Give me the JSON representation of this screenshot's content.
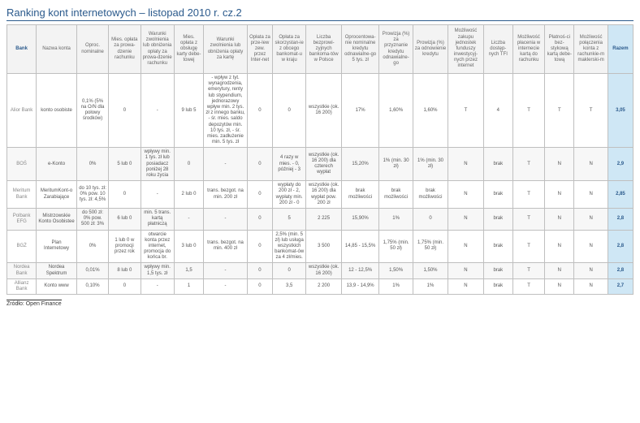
{
  "title": "Ranking kont internetowych – listopad 2010 r. cz.2",
  "source": "Źródło: Open Finance",
  "columns": [
    "Bank",
    "Nazwa konta",
    "Oproc. nominalne",
    "Mies. opłata za prowa-dzenie rachunku",
    "Warunki zwolnienia lub obniżenia opłaty za prowa-dzenie rachunku",
    "Mies. opłata z obsługę karty debe-towej",
    "Warunki zwolnienia lub obniżenia opłaty za kartę",
    "Opłata za prze-lew zew. przez Inter-net",
    "Opłata za skorzystan-ie z obcego bankomat-u w kraju",
    "Liczba bezprowi-zyjnych bankoma-tów w Polsce",
    "Oprocentowa-nie nominalne kredytu odnawialne-go 5 tys. zł",
    "Prowizja (%) za przyznanie kredytu odnawialne-go",
    "Prowizja (%) za odnowienie kredytu",
    "Możliwość zakupu jednostek funduszy inwestycyj-nych przez internet",
    "Liczba dostęp-nych TFI",
    "Możliwość płacenia w internecie kartą do rachunku",
    "Płatnoś-ci bez-stykową kartą debe-tową",
    "Możliwość połączenia konta z rachunkie-m maklerski-m",
    "Razem"
  ],
  "rows": [
    {
      "alt": false,
      "cells": [
        "Alior Bank",
        "konto osobiste",
        "0,1% (5% na O/N dla połowy środków)",
        "0",
        "-",
        "9 lub 5",
        "- wpływ z tyt. wynagrodzenia, emerytury, renty lub stypendium, jednorazowy wpływ min. 2 tys. zł z innego banku, - śr. mies. saldo depozytów min. 10 tys. zł, - śr. mies. zadłużenie min. 5 tys. zł",
        "0",
        "0",
        "wszystkie (ok. 16 200)",
        "17%",
        "1,60%",
        "1,60%",
        "T",
        "4",
        "T",
        "T",
        "T",
        "3,05"
      ]
    },
    {
      "alt": true,
      "cells": [
        "BOŚ",
        "e-Konto",
        "0%",
        "5 lub 0",
        "wpływy min. 1 tys. zł lub posiadacz poniżej 28 roku życia",
        "0",
        "-",
        "0",
        "4 razy w mies. - 0, później - 3",
        "wszystkie (ok. 16 200) dla czterech wypłat",
        "15,20%",
        "1% (min. 30 zł)",
        "1% (min. 30 zł)",
        "N",
        "brak",
        "T",
        "N",
        "N",
        "2,9"
      ]
    },
    {
      "alt": false,
      "cells": [
        "Meritum Bank",
        "MeritumKont-o Zarabiające",
        "do 10 tys. zł: 0% pow. 10 tys. zł: 4,5%",
        "0",
        "-",
        "2 lub 0",
        "trans. bezgot. na min. 200 zł",
        "0",
        "wypłaty do 200 zł - 2, wypłaty min. 200 zł - 0",
        "wszystkie (ok. 16 200) dla wypłat pow. 200 zł",
        "brak możliwości",
        "brak możliwości",
        "brak możliwości",
        "N",
        "brak",
        "T",
        "N",
        "N",
        "2,85"
      ]
    },
    {
      "alt": true,
      "cells": [
        "Polbank EFG",
        "Mistrzowskie Konto Osobistee",
        "do 500 zł: 0% pow. 500 zł: 3%",
        "6 lub 0",
        "min. 5 trans. kartą płatniczą",
        "-",
        "-",
        "0",
        "5",
        "2 225",
        "15,90%",
        "1%",
        "0",
        "N",
        "brak",
        "T",
        "N",
        "N",
        "2,8"
      ]
    },
    {
      "alt": false,
      "cells": [
        "BGŻ",
        "Plan Internetowy",
        "0%",
        "1 lub 0 w promocji przez rok",
        "otwarcie konta przez internet, promocja do końca br.",
        "3 lub 0",
        "trans. bezgot. na min. 400 zł",
        "0",
        "2,5% (min. 5 zł) lub usługa wszystkich bankomat-ów za 4 zł/mies.",
        "3 500",
        "14,85 - 15,5%",
        "1,75% (min. 50 zł)",
        "1,75% (min. 50 zł)",
        "N",
        "brak",
        "T",
        "N",
        "N",
        "2,8"
      ]
    },
    {
      "alt": true,
      "cells": [
        "Nordea Bank",
        "Nordea Spektrum",
        "0,01%",
        "8 lub 0",
        "wpływy min. 1,5 tys. zł",
        "1,5",
        "-",
        "0",
        "0",
        "wszystkie (ok. 16 200)",
        "12 - 12,5%",
        "1,50%",
        "1,50%",
        "N",
        "brak",
        "T",
        "N",
        "N",
        "2,8"
      ]
    },
    {
      "alt": false,
      "cells": [
        "Allianz Bank",
        "Konto www",
        "0,10%",
        "0",
        "-",
        "1",
        "-",
        "0",
        "3,5",
        "2 200",
        "13,9 - 14,9%",
        "1%",
        "1%",
        "N",
        "brak",
        "T",
        "N",
        "N",
        "2,7"
      ]
    }
  ]
}
